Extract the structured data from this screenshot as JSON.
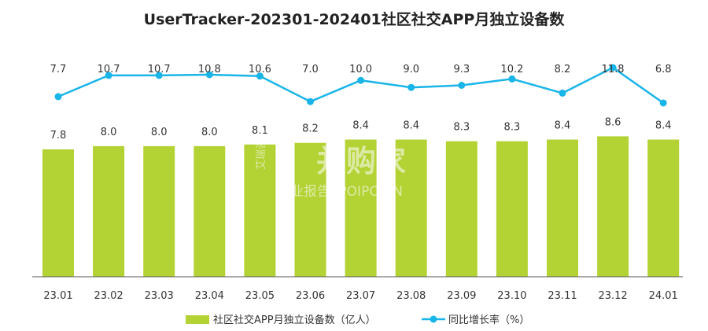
{
  "chart_data": {
    "type": "bar",
    "title": "UserTracker-202301-202401社区社交APP月独立设备数",
    "categories": [
      "23.01",
      "23.02",
      "23.03",
      "23.04",
      "23.05",
      "23.06",
      "23.07",
      "23.08",
      "23.09",
      "23.10",
      "23.11",
      "23.12",
      "24.01"
    ],
    "series": [
      {
        "name": "社区社交APP月独立设备数（亿人）",
        "type": "bar",
        "values": [
          7.8,
          8.0,
          8.0,
          8.0,
          8.1,
          8.2,
          8.4,
          8.4,
          8.3,
          8.3,
          8.4,
          8.6,
          8.4
        ]
      },
      {
        "name": "同比增长率（%）",
        "type": "line",
        "values": [
          7.7,
          10.7,
          10.7,
          10.8,
          10.6,
          7.0,
          10.0,
          9.0,
          9.3,
          10.2,
          8.2,
          11.8,
          6.8
        ]
      }
    ],
    "legend_position": "bottom-center",
    "grid": false,
    "colors": {
      "bar": "#b3d233",
      "line": "#1ab5e8"
    }
  },
  "watermark": {
    "brand": "艾瑞咨询",
    "main": "并购家",
    "sub": "行业报告 IPOIPO.CN"
  }
}
